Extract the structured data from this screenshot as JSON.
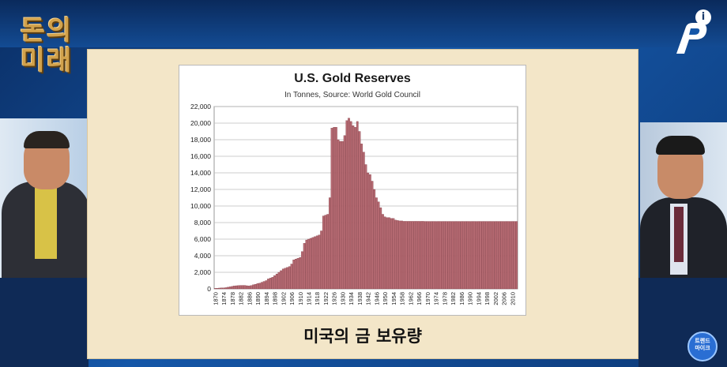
{
  "channel": {
    "logo_text": "돈의\n미래",
    "info_icon": "info-icon",
    "badge_text": "트렌드\n마이크"
  },
  "slide": {
    "caption": "미국의 금 보유량"
  },
  "colors": {
    "bar_fill": "#b56a72",
    "bar_stroke": "#7a2e38",
    "board": "#f3e6c8",
    "background": "#0d3a78"
  },
  "chart_data": {
    "type": "bar",
    "title": "U.S. Gold Reserves",
    "subtitle": "In Tonnes, Source: World Gold Council",
    "xlabel": "",
    "ylabel": "",
    "ylim": [
      0,
      22000
    ],
    "yticks": [
      "0",
      "2,000",
      "4,000",
      "6,000",
      "8,000",
      "10,000",
      "12,000",
      "14,000",
      "16,000",
      "18,000",
      "20,000",
      "22,000"
    ],
    "xticks": [
      "1870",
      "1874",
      "1878",
      "1882",
      "1886",
      "1890",
      "1894",
      "1898",
      "1902",
      "1906",
      "1910",
      "1914",
      "1918",
      "1922",
      "1926",
      "1930",
      "1934",
      "1938",
      "1942",
      "1946",
      "1950",
      "1954",
      "1958",
      "1962",
      "1966",
      "1970",
      "1974",
      "1978",
      "1982",
      "1986",
      "1990",
      "1994",
      "1998",
      "2002",
      "2006",
      "2010"
    ],
    "grid": true,
    "x_start": 1870,
    "values": [
      60,
      80,
      100,
      110,
      120,
      150,
      200,
      250,
      300,
      350,
      380,
      400,
      420,
      420,
      420,
      380,
      350,
      400,
      500,
      550,
      650,
      700,
      800,
      900,
      1000,
      1200,
      1300,
      1400,
      1600,
      1800,
      2000,
      2200,
      2400,
      2500,
      2600,
      2700,
      3000,
      3500,
      3600,
      3700,
      3800,
      4500,
      5500,
      5900,
      6000,
      6100,
      6200,
      6300,
      6400,
      6500,
      7000,
      8800,
      8900,
      9000,
      11000,
      19400,
      19500,
      19500,
      18000,
      17800,
      17800,
      18500,
      20300,
      20600,
      20200,
      19700,
      19500,
      20200,
      19000,
      17500,
      16500,
      15000,
      14000,
      13800,
      13000,
      12000,
      11000,
      10500,
      9800,
      9000,
      8700,
      8600,
      8600,
      8500,
      8500,
      8300,
      8250,
      8200,
      8200,
      8150,
      8150,
      8150,
      8150,
      8150,
      8150,
      8150,
      8150,
      8150,
      8150,
      8140,
      8140,
      8140,
      8140,
      8140,
      8140,
      8140,
      8140,
      8140,
      8140,
      8140,
      8140,
      8140,
      8140,
      8140,
      8140,
      8140,
      8140,
      8140,
      8140,
      8140,
      8140,
      8140,
      8140,
      8140,
      8140,
      8140,
      8140,
      8140,
      8140,
      8140,
      8140,
      8140,
      8140,
      8140,
      8140,
      8140,
      8140,
      8140,
      8140,
      8140,
      8140,
      8140,
      8140
    ]
  }
}
